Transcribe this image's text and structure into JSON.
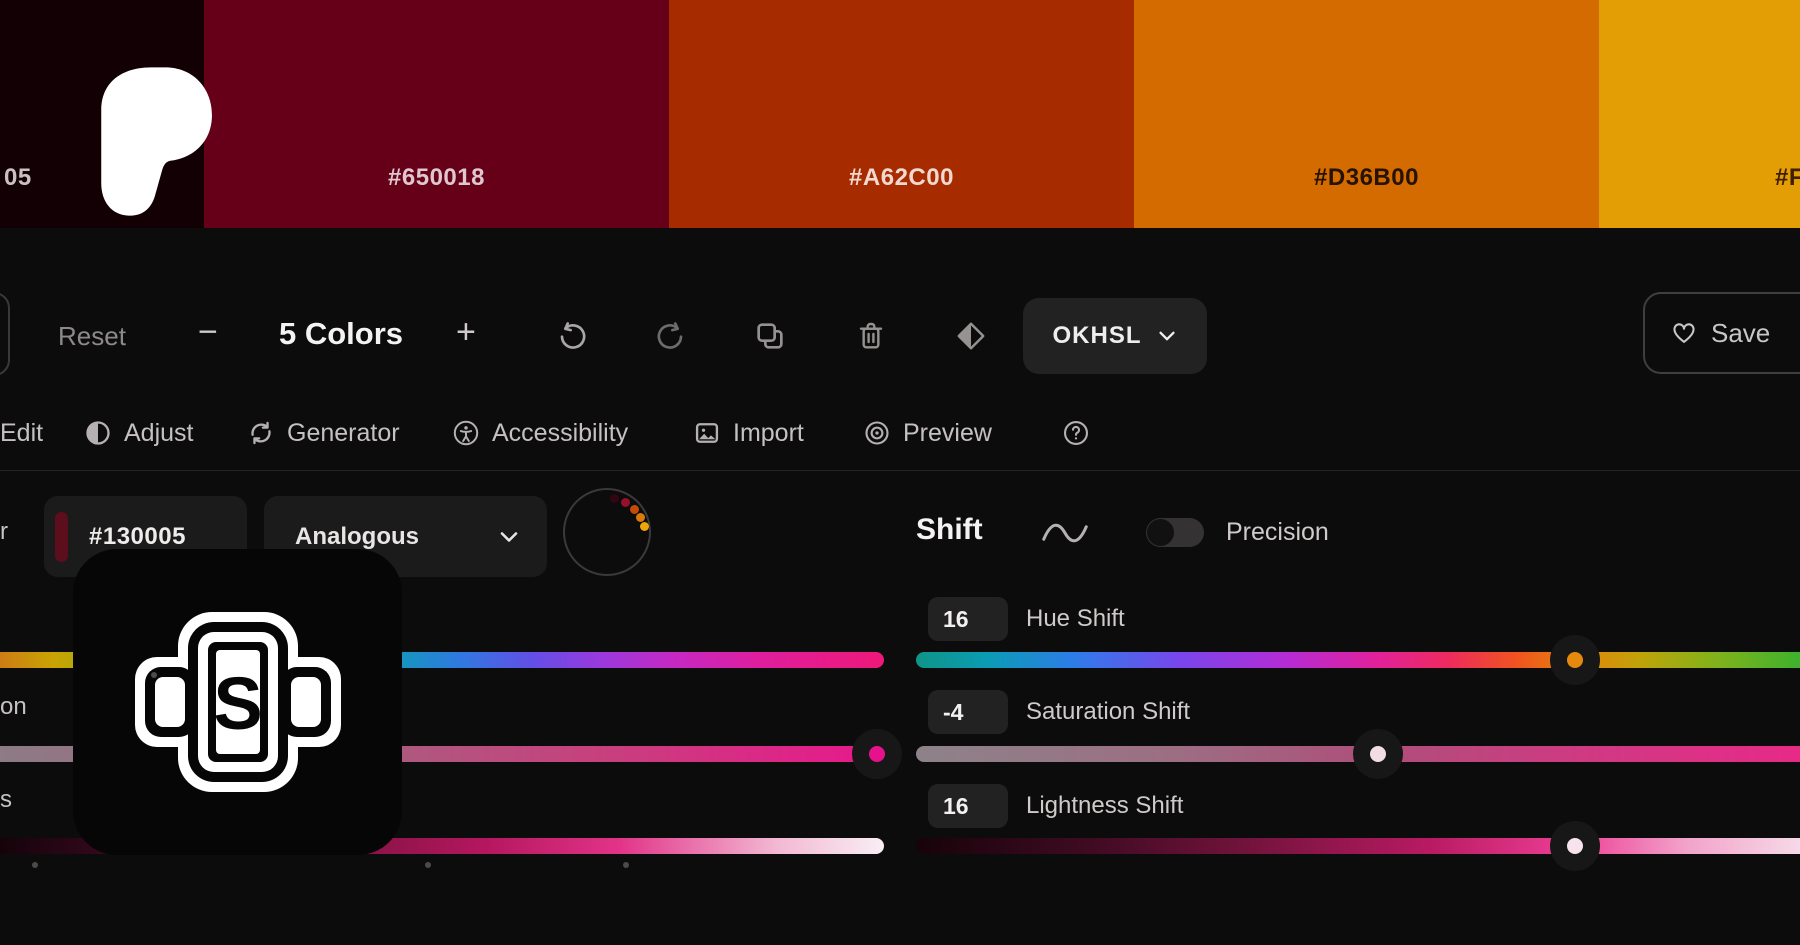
{
  "swatch_strip": {
    "swatches": [
      {
        "label": "05",
        "color": "#130005",
        "label_color": "#CBBFC3"
      },
      {
        "label": "#650018",
        "color": "#650018",
        "label_color": "#DEC7CE"
      },
      {
        "label": "#A62C00",
        "color": "#A62C00",
        "label_color": "#F0D9D1"
      },
      {
        "label": "#D36B00",
        "color": "#D36B00",
        "label_color": "#251200"
      },
      {
        "label": "#F",
        "color": "#E39D05",
        "label_color": "#3E1F00"
      }
    ]
  },
  "toolbar": {
    "reset_label": "Reset",
    "decrement_label": "−",
    "count_label": "5 Colors",
    "increment_label": "+",
    "mode_label": "OKHSL",
    "save_label": "Save"
  },
  "tabs": {
    "edit": "Edit",
    "adjust": "Adjust",
    "generator": "Generator",
    "accessibility": "Accessibility",
    "import": "Import",
    "preview": "Preview"
  },
  "controls": {
    "left_label_fragment": "r",
    "hex_value": "#130005",
    "hex_swatch_color": "#5C0E1C",
    "harmony_value": "Analogous",
    "wheel_dot_colors": [
      "#320511",
      "#951029",
      "#C44B07",
      "#D7790B",
      "#EDA609"
    ]
  },
  "shift_panel": {
    "title": "Shift",
    "toggle_label": "Precision",
    "toggle_on": false,
    "sliders": [
      {
        "value": "16",
        "label": "Hue Shift",
        "handle_pos": 0.745,
        "handle_dot_color": "#E58A0C"
      },
      {
        "value": "-4",
        "label": "Saturation Shift",
        "handle_pos": 0.523,
        "handle_dot_color": "#F2DDE6"
      },
      {
        "value": "16",
        "label": "Lightness Shift",
        "handle_pos": 0.745,
        "handle_dot_color": "#F6E3EC"
      }
    ]
  },
  "left_panel": {
    "label_fragment_saturation": "on",
    "label_fragment_lightness": "s",
    "saturation_handle_dot_color": "#E5128C",
    "logo_letter": "S"
  }
}
